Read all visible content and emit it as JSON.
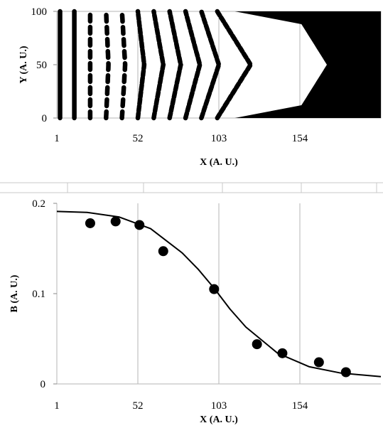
{
  "chart_data": [
    {
      "type": "scatter",
      "xlabel": "X (A. U.)",
      "ylabel": "Y (A. U.)",
      "xlim": [
        1,
        205
      ],
      "ylim": [
        0,
        100
      ],
      "x_ticks": [
        "1",
        "52",
        "103",
        "154"
      ],
      "y_ticks": [
        "0",
        "50",
        "100"
      ],
      "grid": "vertical",
      "series": [
        {
          "points": [
            [
              3,
              0
            ],
            [
              3,
              100
            ]
          ]
        },
        {
          "points": [
            [
              12,
              0
            ],
            [
              12,
              100
            ]
          ]
        },
        {
          "points": [
            [
              22,
              0
            ],
            [
              22,
              100
            ]
          ]
        },
        {
          "points": [
            [
              32,
              0
            ],
            [
              33.5,
              50
            ],
            [
              32,
              100
            ]
          ]
        },
        {
          "points": [
            [
              42,
              0
            ],
            [
              44,
              50
            ],
            [
              42,
              100
            ]
          ]
        },
        {
          "points": [
            [
              52,
              0
            ],
            [
              56,
              50
            ],
            [
              52,
              100
            ]
          ]
        },
        {
          "points": [
            [
              62,
              0
            ],
            [
              68,
              50
            ],
            [
              62,
              100
            ]
          ]
        },
        {
          "points": [
            [
              72,
              0
            ],
            [
              79,
              50
            ],
            [
              72,
              100
            ]
          ]
        },
        {
          "points": [
            [
              82,
              0
            ],
            [
              91,
              50
            ],
            [
              82,
              100
            ]
          ]
        },
        {
          "points": [
            [
              92,
              0
            ],
            [
              103,
              50
            ],
            [
              92,
              100
            ]
          ]
        },
        {
          "points": [
            [
              102,
              0
            ],
            [
              123,
              50
            ],
            [
              102,
              100
            ]
          ]
        }
      ],
      "filled_region": {
        "color": "#000000",
        "y_range": [
          0,
          100
        ],
        "x_edge": [
          [
            113,
            0
          ],
          [
            155,
            12
          ],
          [
            171,
            50
          ],
          [
            155,
            88
          ],
          [
            113,
            100
          ]
        ]
      }
    },
    {
      "type": "scatter",
      "xlabel": "X (A. U.)",
      "ylabel": "B (A. U.)",
      "xlim": [
        1,
        205
      ],
      "ylim": [
        0,
        0.2
      ],
      "x_ticks": [
        "1",
        "52",
        "103",
        "154"
      ],
      "y_ticks": [
        "0",
        "0.1",
        "0.2"
      ],
      "grid": "vertical",
      "series": [
        {
          "x": [
            22,
            38,
            53,
            68,
            100,
            127,
            143,
            166,
            183
          ],
          "y": [
            0.178,
            0.18,
            0.176,
            0.147,
            0.105,
            0.044,
            0.034,
            0.024,
            0.013
          ]
        }
      ],
      "fit_curve": {
        "x": [
          1,
          20,
          40,
          60,
          80,
          90,
          100,
          110,
          120,
          140,
          160,
          180,
          205
        ],
        "y": [
          0.191,
          0.19,
          0.185,
          0.172,
          0.145,
          0.127,
          0.106,
          0.083,
          0.063,
          0.034,
          0.019,
          0.012,
          0.008
        ]
      },
      "marker_color": "#000000"
    }
  ]
}
